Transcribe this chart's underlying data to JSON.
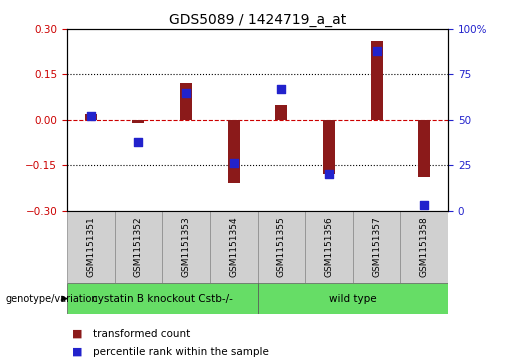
{
  "title": "GDS5089 / 1424719_a_at",
  "samples": [
    "GSM1151351",
    "GSM1151352",
    "GSM1151353",
    "GSM1151354",
    "GSM1151355",
    "GSM1151356",
    "GSM1151357",
    "GSM1151358"
  ],
  "transformed_count": [
    0.02,
    -0.01,
    0.12,
    -0.21,
    0.05,
    -0.18,
    0.26,
    -0.19
  ],
  "percentile_rank": [
    52,
    38,
    65,
    26,
    67,
    20,
    88,
    3
  ],
  "ylim_left": [
    -0.3,
    0.3
  ],
  "ylim_right": [
    0,
    100
  ],
  "yticks_left": [
    -0.3,
    -0.15,
    0,
    0.15,
    0.3
  ],
  "yticks_right": [
    0,
    25,
    50,
    75,
    100
  ],
  "hlines": [
    0.15,
    -0.15
  ],
  "bar_color": "#8B1A1A",
  "dot_color": "#2222CC",
  "zero_line_color": "#CC0000",
  "group1_label": "cystatin B knockout Cstb-/-",
  "group2_label": "wild type",
  "group_color": "#66DD66",
  "group1_samples": 4,
  "group2_samples": 4,
  "sample_box_color": "#D0D0D0",
  "legend_bar_label": "transformed count",
  "legend_dot_label": "percentile rank within the sample",
  "genotype_label": "genotype/variation",
  "tick_color_left": "#CC0000",
  "tick_color_right": "#2222CC",
  "bar_width": 0.25,
  "dot_size": 28
}
